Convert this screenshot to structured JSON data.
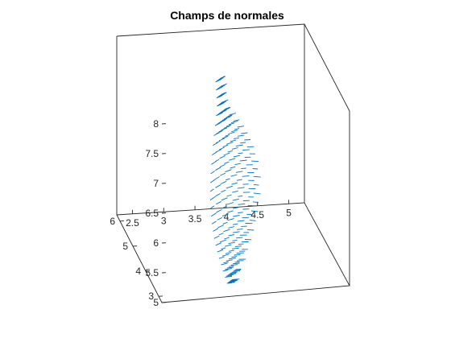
{
  "chart_data": {
    "type": "quiver3",
    "title": "Champs de normales",
    "xlabel": "",
    "ylabel": "",
    "zlabel": "",
    "xlim": [
      2.25,
      5.25
    ],
    "ylim": [
      2.75,
      6.25
    ],
    "zlim": [
      5,
      8
    ],
    "x_ticks": [
      "2.5",
      "3",
      "3.5",
      "4",
      "4.5",
      "5"
    ],
    "y_ticks": [
      "3",
      "4",
      "5",
      "6"
    ],
    "z_ticks": [
      "5",
      "5.5",
      "6",
      "6.5",
      "7",
      "7.5",
      "8"
    ],
    "grid": false,
    "series_color": "#0072bd",
    "surface": "curved sheet of normal vectors spanning x 3.3–4.0, z 5–8"
  }
}
